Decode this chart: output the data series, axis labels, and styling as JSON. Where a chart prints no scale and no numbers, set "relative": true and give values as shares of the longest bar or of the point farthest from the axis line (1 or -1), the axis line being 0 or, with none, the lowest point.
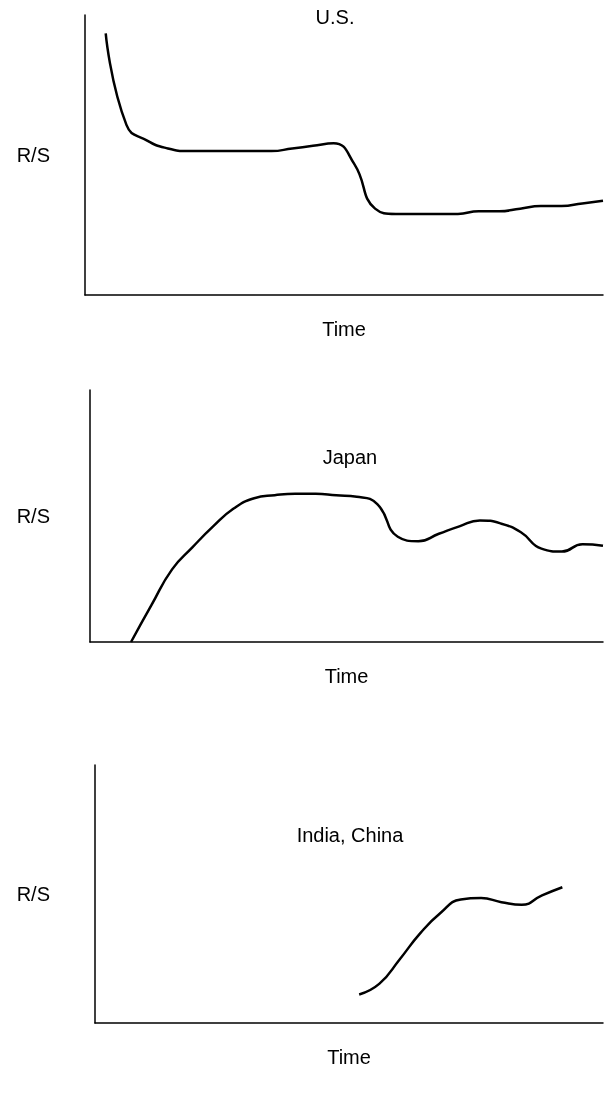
{
  "chart_data": [
    {
      "type": "line",
      "title": "U.S.",
      "xlabel": "Time",
      "ylabel": "R/S",
      "relative": true,
      "marker": "none",
      "color": "#000000",
      "categories": [
        null,
        null,
        null,
        null,
        null,
        null,
        null,
        null,
        null,
        null,
        null,
        null,
        null,
        null,
        null,
        null,
        null,
        null,
        null,
        null,
        null,
        null,
        null,
        null,
        null,
        null
      ],
      "values": [
        null,
        1,
        0.65,
        0.59,
        0.56,
        0.55,
        0.55,
        0.55,
        0.55,
        0.55,
        0.56,
        0.57,
        0.58,
        0.5,
        0.33,
        0.31,
        0.31,
        0.31,
        0.31,
        0.32,
        0.32,
        0.33,
        0.34,
        0.34,
        0.35,
        0.36
      ]
    },
    {
      "type": "line",
      "title": "Japan",
      "xlabel": "Time",
      "ylabel": "R/S",
      "relative": true,
      "marker": "none",
      "color": "#000000",
      "categories": [
        null,
        null,
        null,
        null,
        null,
        null,
        null,
        null,
        null,
        null,
        null,
        null,
        null,
        null,
        null,
        null,
        null,
        null,
        null,
        null,
        null,
        null,
        null,
        null,
        null,
        null
      ],
      "values": [
        null,
        null,
        0,
        0.25,
        0.49,
        0.64,
        0.78,
        0.9,
        0.97,
        0.99,
        1,
        1,
        0.99,
        0.98,
        0.93,
        0.71,
        0.68,
        0.73,
        0.78,
        0.82,
        0.8,
        0.74,
        0.63,
        0.61,
        0.66,
        0.65
      ]
    },
    {
      "type": "line",
      "title": "India, China",
      "xlabel": "Time",
      "ylabel": "R/S",
      "relative": true,
      "marker": "none",
      "color": "#000000",
      "categories": [
        null,
        null,
        null,
        null,
        null,
        null,
        null,
        null,
        null,
        null,
        null,
        null,
        null,
        null,
        null,
        null,
        null,
        null,
        null,
        null,
        null,
        null,
        null,
        null,
        null,
        null
      ],
      "values": [
        null,
        null,
        null,
        null,
        null,
        null,
        null,
        null,
        null,
        null,
        null,
        null,
        null,
        0.21,
        0.29,
        0.47,
        0.66,
        0.81,
        0.91,
        0.92,
        0.89,
        0.87,
        0.94,
        1,
        null,
        null
      ]
    }
  ]
}
